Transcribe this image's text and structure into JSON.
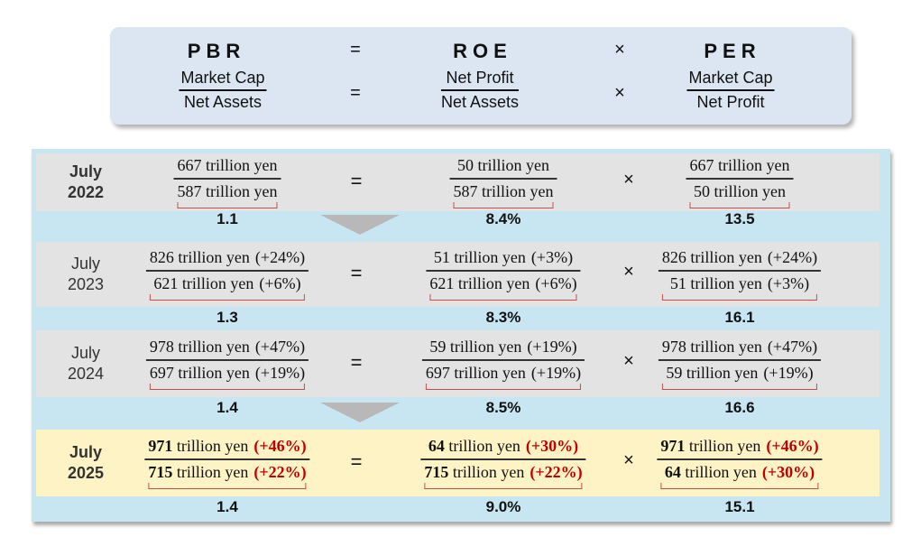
{
  "formula": {
    "pbr": "PBR",
    "roe": "ROE",
    "per": "PER",
    "equals": "=",
    "times": "×",
    "pbr_num": "Market Cap",
    "pbr_den": "Net Assets",
    "roe_num": "Net Profit",
    "roe_den": "Net Assets",
    "per_num": "Market Cap",
    "per_den": "Net Profit"
  },
  "rows": [
    {
      "month": "July",
      "year": "2022",
      "bold": true,
      "highlight": false,
      "pbr": {
        "num": {
          "value": "667",
          "unit": " trillion yen",
          "change": ""
        },
        "den": {
          "value": "587",
          "unit": " trillion yen",
          "change": ""
        },
        "result": "1.1"
      },
      "roe": {
        "num": {
          "value": "50",
          "unit": " trillion yen",
          "change": ""
        },
        "den": {
          "value": "587",
          "unit": " trillion yen",
          "change": ""
        },
        "result": "8.4%"
      },
      "per": {
        "num": {
          "value": "667",
          "unit": " trillion yen",
          "change": ""
        },
        "den": {
          "value": "50",
          "unit": " trillion yen",
          "change": ""
        },
        "result": "13.5"
      }
    },
    {
      "month": "July",
      "year": "2023",
      "bold": false,
      "highlight": false,
      "pbr": {
        "num": {
          "value": "826",
          "unit": " trillion yen",
          "change": "(+24%)"
        },
        "den": {
          "value": "621",
          "unit": " trillion yen",
          "change": "(+6%)"
        },
        "result": "1.3"
      },
      "roe": {
        "num": {
          "value": "51",
          "unit": " trillion yen",
          "change": "(+3%)"
        },
        "den": {
          "value": "621",
          "unit": " trillion yen",
          "change": "(+6%)"
        },
        "result": "8.3%"
      },
      "per": {
        "num": {
          "value": "826",
          "unit": " trillion yen",
          "change": "(+24%)"
        },
        "den": {
          "value": "51",
          "unit": " trillion yen",
          "change": "(+3%)"
        },
        "result": "16.1"
      }
    },
    {
      "month": "July",
      "year": "2024",
      "bold": false,
      "highlight": false,
      "pbr": {
        "num": {
          "value": "978",
          "unit": " trillion yen",
          "change": "(+47%)"
        },
        "den": {
          "value": "697",
          "unit": " trillion yen",
          "change": "(+19%)"
        },
        "result": "1.4"
      },
      "roe": {
        "num": {
          "value": "59",
          "unit": " trillion yen",
          "change": "(+19%)"
        },
        "den": {
          "value": "697",
          "unit": " trillion yen",
          "change": "(+19%)"
        },
        "result": "8.5%"
      },
      "per": {
        "num": {
          "value": "978",
          "unit": " trillion yen",
          "change": "(+47%)"
        },
        "den": {
          "value": "59",
          "unit": " trillion yen",
          "change": "(+19%)"
        },
        "result": "16.6"
      }
    },
    {
      "month": "July",
      "year": "2025",
      "bold": true,
      "highlight": true,
      "pbr": {
        "num": {
          "value": "971",
          "unit": " trillion yen",
          "change": "(+46%)"
        },
        "den": {
          "value": "715",
          "unit": " trillion yen",
          "change": "(+22%)"
        },
        "result": "1.4"
      },
      "roe": {
        "num": {
          "value": "64",
          "unit": " trillion yen",
          "change": "(+30%)"
        },
        "den": {
          "value": "715",
          "unit": " trillion yen",
          "change": "(+22%)"
        },
        "result": "9.0%"
      },
      "per": {
        "num": {
          "value": "971",
          "unit": " trillion yen",
          "change": "(+46%)"
        },
        "den": {
          "value": "64",
          "unit": " trillion yen",
          "change": "(+30%)"
        },
        "result": "15.1"
      }
    }
  ],
  "colors": {
    "panel": "#c8e6f2",
    "row": "#e3e3e3",
    "highlight": "#fdf3c5",
    "bracket": "#c0504d",
    "change_red": "#c00000"
  }
}
